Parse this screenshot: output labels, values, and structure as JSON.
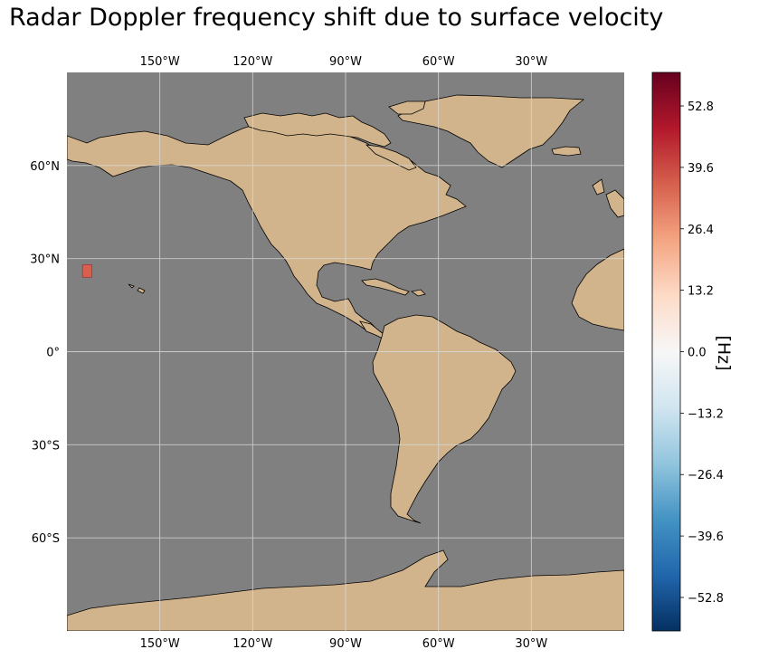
{
  "title": "Radar Doppler frequency shift due to surface velocity",
  "map": {
    "projection": "PlateCarree",
    "extent_lon": [
      -180,
      0
    ],
    "extent_lat": [
      -90,
      90
    ],
    "ocean_color": "#808080",
    "land_color": "#d2b48c",
    "coastline_color": "#000000",
    "gridlines": true,
    "lon_ticks": [
      {
        "value": -150,
        "label": "150°W"
      },
      {
        "value": -120,
        "label": "120°W"
      },
      {
        "value": -90,
        "label": "90°W"
      },
      {
        "value": -60,
        "label": "60°W"
      },
      {
        "value": -30,
        "label": "30°W"
      }
    ],
    "lat_ticks": [
      {
        "value": 60,
        "label": "60°N"
      },
      {
        "value": 30,
        "label": "30°N"
      },
      {
        "value": 0,
        "label": "0°"
      },
      {
        "value": -30,
        "label": "30°S"
      },
      {
        "value": -60,
        "label": "60°S"
      }
    ],
    "data_patch": {
      "lon": [
        -175,
        -172
      ],
      "lat": [
        24,
        28
      ],
      "color": "#d6604d"
    }
  },
  "colorbar": {
    "label": "[Hz]",
    "colormap": "RdBu_r",
    "range": [
      -60,
      60
    ],
    "ticks": [
      {
        "value": 52.8,
        "label": "52.8"
      },
      {
        "value": 39.6,
        "label": "39.6"
      },
      {
        "value": 26.4,
        "label": "26.4"
      },
      {
        "value": 13.2,
        "label": "13.2"
      },
      {
        "value": 0.0,
        "label": "0.0"
      },
      {
        "value": -13.2,
        "label": "−13.2"
      },
      {
        "value": -26.4,
        "label": "−26.4"
      },
      {
        "value": -39.6,
        "label": "−39.6"
      },
      {
        "value": -52.8,
        "label": "−52.8"
      }
    ]
  }
}
